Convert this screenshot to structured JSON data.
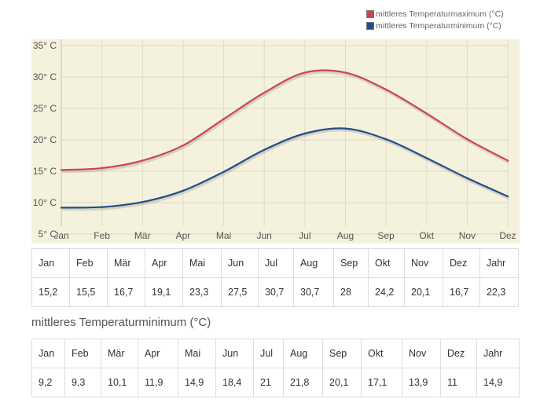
{
  "legend": [
    {
      "label": "mittleres Temperaturmaximum (°C)",
      "color": "#cc4455"
    },
    {
      "label": "mittleres Temperaturminimum (°C)",
      "color": "#1f4e8c"
    }
  ],
  "chart_data": {
    "type": "line",
    "categories": [
      "Jan",
      "Feb",
      "Mär",
      "Apr",
      "Mai",
      "Jun",
      "Jul",
      "Aug",
      "Sep",
      "Okt",
      "Nov",
      "Dez"
    ],
    "series": [
      {
        "name": "mittleres Temperaturmaximum (°C)",
        "color": "#cc4455",
        "values": [
          15.2,
          15.5,
          16.7,
          19.1,
          23.3,
          27.5,
          30.7,
          30.7,
          28,
          24.2,
          20.1,
          16.7
        ]
      },
      {
        "name": "mittleres Temperaturminimum (°C)",
        "color": "#1f4e8c",
        "values": [
          9.2,
          9.3,
          10.1,
          11.9,
          14.9,
          18.4,
          21,
          21.8,
          20.1,
          17.1,
          13.9,
          11
        ]
      }
    ],
    "yticks": [
      "5° C",
      "10° C",
      "15° C",
      "20° C",
      "25° C",
      "30° C",
      "35° C"
    ],
    "ytick_values": [
      5,
      10,
      15,
      20,
      25,
      30,
      35
    ],
    "ylim": [
      3.5,
      36
    ],
    "grid": true,
    "background": "#f4f1dd",
    "legend_position": "top-right"
  },
  "table_max": {
    "headers": [
      "Jan",
      "Feb",
      "Mär",
      "Apr",
      "Mai",
      "Jun",
      "Jul",
      "Aug",
      "Sep",
      "Okt",
      "Nov",
      "Dez",
      "Jahr"
    ],
    "values": [
      "15,2",
      "15,5",
      "16,7",
      "19,1",
      "23,3",
      "27,5",
      "30,7",
      "30,7",
      "28",
      "24,2",
      "20,1",
      "16,7",
      "22,3"
    ]
  },
  "table_min": {
    "title": "mittleres Temperaturminimum (°C)",
    "headers": [
      "Jan",
      "Feb",
      "Mär",
      "Apr",
      "Mai",
      "Jun",
      "Jul",
      "Aug",
      "Sep",
      "Okt",
      "Nov",
      "Dez",
      "Jahr"
    ],
    "values": [
      "9,2",
      "9,3",
      "10,1",
      "11,9",
      "14,9",
      "18,4",
      "21",
      "21,8",
      "20,1",
      "17,1",
      "13,9",
      "11",
      "14,9"
    ]
  }
}
